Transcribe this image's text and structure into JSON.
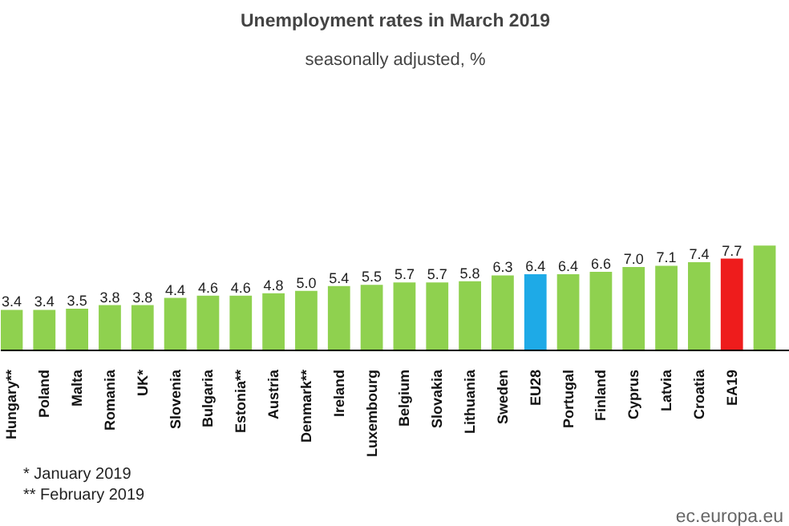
{
  "chart_data": {
    "type": "bar",
    "title": "Unemployment rates in March 2019",
    "subtitle": "seasonally adjusted, %",
    "categories": [
      "Hungary**",
      "Poland",
      "Malta",
      "Romania",
      "UK*",
      "Slovenia",
      "Bulgaria",
      "Estonia**",
      "Austria",
      "Denmark**",
      "Ireland",
      "Luxembourg",
      "Belgium",
      "Slovakia",
      "Lithuania",
      "Sweden",
      "EU28",
      "Portugal",
      "Finland",
      "Cyprus",
      "Latvia",
      "Croatia",
      "EA19",
      null
    ],
    "values": [
      3.4,
      3.4,
      3.5,
      3.8,
      3.8,
      4.4,
      4.6,
      4.6,
      4.8,
      5.0,
      5.4,
      5.5,
      5.7,
      5.7,
      5.8,
      6.3,
      6.4,
      6.4,
      6.6,
      7.0,
      7.1,
      7.4,
      7.7,
      8.8
    ],
    "value_labels": [
      "3.4",
      "3.4",
      "3.5",
      "3.8",
      "3.8",
      "4.4",
      "4.6",
      "4.6",
      "4.8",
      "5.0",
      "5.4",
      "5.5",
      "5.7",
      "5.7",
      "5.8",
      "6.3",
      "6.4",
      "6.4",
      "6.6",
      "7.0",
      "7.1",
      "7.4",
      "7.7",
      null
    ],
    "colors": [
      "#8fd14f",
      "#8fd14f",
      "#8fd14f",
      "#8fd14f",
      "#8fd14f",
      "#8fd14f",
      "#8fd14f",
      "#8fd14f",
      "#8fd14f",
      "#8fd14f",
      "#8fd14f",
      "#8fd14f",
      "#8fd14f",
      "#8fd14f",
      "#8fd14f",
      "#8fd14f",
      "#1eaae7",
      "#8fd14f",
      "#8fd14f",
      "#8fd14f",
      "#8fd14f",
      "#8fd14f",
      "#ee1c1c",
      "#8fd14f"
    ],
    "tick_labels": "x",
    "annotations": [
      "*  January 2019",
      "** February 2019",
      "ec.europa.eu"
    ]
  }
}
